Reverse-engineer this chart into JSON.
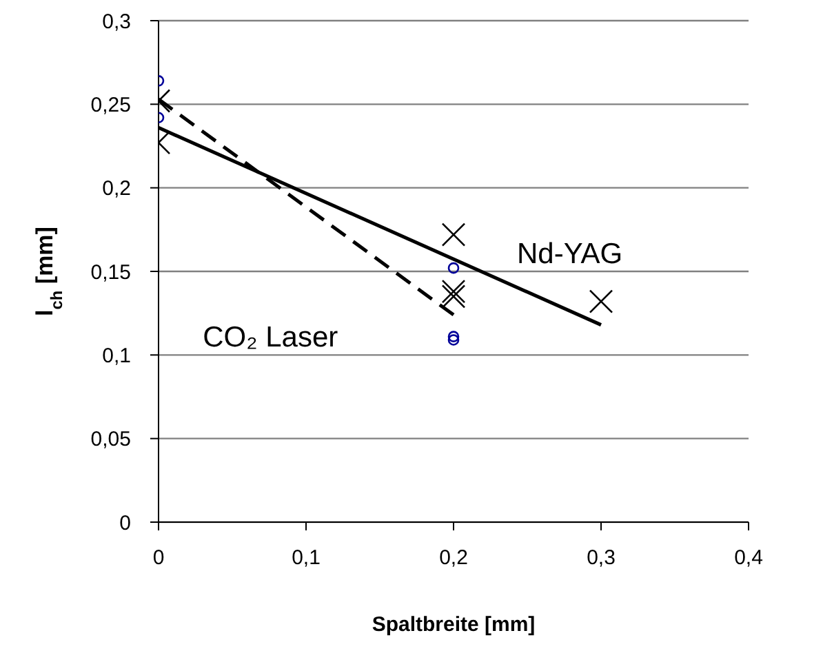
{
  "chart_data": {
    "type": "scatter",
    "xlabel": "Spaltbreite [mm]",
    "ylabel": "l$_{ch}$ [mm]",
    "xlim": [
      0,
      0.4
    ],
    "xticks": [
      {
        "value": 0,
        "label": "0"
      },
      {
        "value": 0.1,
        "label": "0,1"
      },
      {
        "value": 0.2,
        "label": "0,2"
      },
      {
        "value": 0.3,
        "label": "0,3"
      },
      {
        "value": 0.4,
        "label": "0,4"
      }
    ],
    "ylim": [
      0,
      0.3
    ],
    "yticks": [
      {
        "value": 0,
        "label": "0"
      },
      {
        "value": 0.05,
        "label": "0,05"
      },
      {
        "value": 0.1,
        "label": "0,1"
      },
      {
        "value": 0.15,
        "label": "0,15"
      },
      {
        "value": 0.2,
        "label": "0,2"
      },
      {
        "value": 0.25,
        "label": "0,25"
      },
      {
        "value": 0.3,
        "label": "0,3"
      }
    ],
    "grid": "y",
    "legend": false,
    "series": [
      {
        "marker": "circle",
        "color": "#000099",
        "x": [
          0,
          0,
          0.2,
          0.2,
          0.2
        ],
        "values": [
          0.264,
          0.242,
          0.152,
          0.111,
          0.109
        ]
      },
      {
        "marker": "cross",
        "color": "#000000",
        "x": [
          0,
          0,
          0.2,
          0.2,
          0.2,
          0.3
        ],
        "values": [
          0.252,
          0.227,
          0.172,
          0.138,
          0.135,
          0.132
        ]
      },
      {
        "type": "line",
        "line_style": "dashed",
        "marker": "none",
        "color": "#000000",
        "x": [
          0,
          0.2
        ],
        "values": [
          0.253,
          0.124
        ]
      },
      {
        "type": "line",
        "line_style": "solid",
        "marker": "none",
        "color": "#000000",
        "x": [
          0,
          0.3
        ],
        "values": [
          0.236,
          0.118
        ]
      }
    ],
    "annotations": [
      "Nd-YAG",
      "CO₂ Laser"
    ]
  }
}
